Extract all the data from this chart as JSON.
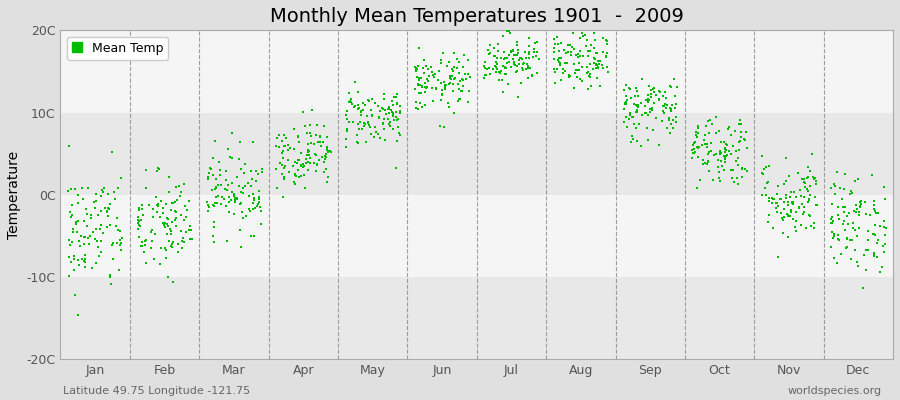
{
  "title": "Monthly Mean Temperatures 1901  -  2009",
  "ylabel": "Temperature",
  "fig_bg_color": "#e0e0e0",
  "plot_bg_color": "#f5f5f5",
  "stripe_color_light": "#f5f5f5",
  "stripe_color_dark": "#e8e8e8",
  "dot_color": "#00bb00",
  "dot_size": 3,
  "ylim": [
    -20,
    20
  ],
  "yticks": [
    -20,
    -10,
    0,
    10,
    20
  ],
  "ytick_labels": [
    "-20C",
    "-10C",
    "0C",
    "10C",
    "20C"
  ],
  "months": [
    "Jan",
    "Feb",
    "Mar",
    "Apr",
    "May",
    "Jun",
    "Jul",
    "Aug",
    "Sep",
    "Oct",
    "Nov",
    "Dec"
  ],
  "month_means": [
    -4.5,
    -3.8,
    0.5,
    5.0,
    9.5,
    13.5,
    16.5,
    16.2,
    10.5,
    5.5,
    -0.5,
    -3.5
  ],
  "month_stds": [
    3.8,
    3.2,
    2.5,
    2.0,
    1.8,
    1.8,
    1.6,
    1.7,
    2.0,
    2.2,
    2.5,
    3.0
  ],
  "n_years": 109,
  "random_seed": 42,
  "title_fontsize": 14,
  "axis_fontsize": 10,
  "tick_fontsize": 9,
  "legend_fontsize": 9,
  "watermark_text": "worldspecies.org",
  "subtitle_text": "Latitude 49.75 Longitude -121.75",
  "subtitle_fontsize": 8
}
